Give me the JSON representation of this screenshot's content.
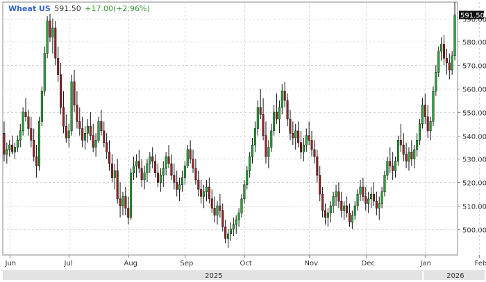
{
  "header": {
    "symbol": "Wheat US",
    "price": "591.50",
    "change": "+17.00(+2.96%)"
  },
  "colors": {
    "up": "#22aa33",
    "down": "#992222",
    "wick": "#111111",
    "grid": "#d6d6d6",
    "symbol": "#3366cc",
    "change": "#339933",
    "last_label_bg": "#111111",
    "last_label_text": "#ffffff",
    "year_band": "#e3e3e3"
  },
  "chart_data": {
    "type": "candlestick",
    "title": "Wheat US",
    "y_axis_side": "right",
    "ylim": [
      489,
      597
    ],
    "yticks": [
      500,
      510,
      520,
      530,
      540,
      550,
      560,
      570,
      580,
      590
    ],
    "grid": true,
    "last_price": 591.5,
    "last_label": "591.50",
    "x_ticks": [
      {
        "label": "Jun",
        "index": 2
      },
      {
        "label": "Jul",
        "index": 24
      },
      {
        "label": "Aug",
        "index": 46
      },
      {
        "label": "Sep",
        "index": 67
      },
      {
        "label": "Oct",
        "index": 89
      },
      {
        "label": "Nov",
        "index": 113
      },
      {
        "label": "Dec",
        "index": 134
      },
      {
        "label": "Jan",
        "index": 156
      },
      {
        "label": "Feb",
        "index": 176
      }
    ],
    "years": [
      {
        "label": "2025",
        "from": 0,
        "to": 156
      },
      {
        "label": "2026",
        "from": 156,
        "to": 196
      }
    ],
    "ohlc": [
      [
        541,
        546,
        529,
        532
      ],
      [
        532,
        537,
        528,
        534
      ],
      [
        534,
        538,
        531,
        536
      ],
      [
        536,
        540,
        532,
        533
      ],
      [
        533,
        537,
        530,
        535
      ],
      [
        535,
        540,
        533,
        538
      ],
      [
        538,
        545,
        535,
        542
      ],
      [
        542,
        552,
        540,
        550
      ],
      [
        550,
        556,
        546,
        548
      ],
      [
        548,
        551,
        540,
        543
      ],
      [
        543,
        548,
        535,
        538
      ],
      [
        538,
        543,
        529,
        531
      ],
      [
        531,
        536,
        522,
        527
      ],
      [
        527,
        548,
        525,
        546
      ],
      [
        546,
        561,
        544,
        559
      ],
      [
        559,
        578,
        557,
        575
      ],
      [
        575,
        591,
        573,
        589
      ],
      [
        589,
        592,
        580,
        582
      ],
      [
        582,
        590,
        575,
        586
      ],
      [
        586,
        589,
        570,
        573
      ],
      [
        573,
        578,
        563,
        566
      ],
      [
        566,
        571,
        549,
        552
      ],
      [
        552,
        559,
        541,
        544
      ],
      [
        544,
        549,
        537,
        539
      ],
      [
        539,
        545,
        535,
        542
      ],
      [
        542,
        566,
        540,
        563
      ],
      [
        563,
        568,
        550,
        553
      ],
      [
        553,
        559,
        543,
        546
      ],
      [
        546,
        552,
        540,
        543
      ],
      [
        543,
        548,
        535,
        538
      ],
      [
        538,
        544,
        534,
        541
      ],
      [
        541,
        547,
        537,
        544
      ],
      [
        544,
        550,
        538,
        540
      ],
      [
        540,
        545,
        533,
        535
      ],
      [
        535,
        541,
        531,
        538
      ],
      [
        538,
        548,
        537,
        546
      ],
      [
        546,
        551,
        540,
        542
      ],
      [
        542,
        546,
        535,
        537
      ],
      [
        537,
        541,
        530,
        533
      ],
      [
        533,
        538,
        525,
        528
      ],
      [
        528,
        532,
        520,
        522
      ],
      [
        522,
        528,
        517,
        525
      ],
      [
        525,
        530,
        511,
        513
      ],
      [
        513,
        520,
        505,
        510
      ],
      [
        510,
        516,
        506,
        514
      ],
      [
        514,
        518,
        506,
        509
      ],
      [
        509,
        514,
        502,
        505
      ],
      [
        505,
        526,
        504,
        524
      ],
      [
        524,
        531,
        521,
        527
      ],
      [
        527,
        532,
        522,
        529
      ],
      [
        529,
        534,
        524,
        526
      ],
      [
        526,
        530,
        518,
        521
      ],
      [
        521,
        527,
        517,
        524
      ],
      [
        524,
        530,
        520,
        528
      ],
      [
        528,
        533,
        524,
        531
      ],
      [
        531,
        535,
        526,
        529
      ],
      [
        529,
        532,
        522,
        524
      ],
      [
        524,
        528,
        518,
        520
      ],
      [
        520,
        526,
        516,
        523
      ],
      [
        523,
        529,
        518,
        526
      ],
      [
        526,
        533,
        523,
        531
      ],
      [
        531,
        536,
        526,
        528
      ],
      [
        528,
        532,
        521,
        523
      ],
      [
        523,
        528,
        517,
        520
      ],
      [
        520,
        525,
        514,
        517
      ],
      [
        517,
        522,
        512,
        519
      ],
      [
        519,
        525,
        516,
        522
      ],
      [
        522,
        529,
        519,
        527
      ],
      [
        527,
        536,
        526,
        534
      ],
      [
        534,
        538,
        528,
        530
      ],
      [
        530,
        534,
        524,
        526
      ],
      [
        526,
        530,
        519,
        521
      ],
      [
        521,
        525,
        514,
        517
      ],
      [
        517,
        521,
        511,
        514
      ],
      [
        514,
        519,
        509,
        516
      ],
      [
        516,
        521,
        512,
        518
      ],
      [
        518,
        522,
        511,
        513
      ],
      [
        513,
        517,
        507,
        509
      ],
      [
        509,
        514,
        503,
        506
      ],
      [
        506,
        512,
        502,
        510
      ],
      [
        510,
        515,
        505,
        508
      ],
      [
        508,
        511,
        499,
        501
      ],
      [
        501,
        504,
        494,
        496
      ],
      [
        496,
        500,
        492,
        498
      ],
      [
        498,
        503,
        495,
        500
      ],
      [
        500,
        505,
        497,
        502
      ],
      [
        502,
        506,
        498,
        504
      ],
      [
        504,
        509,
        501,
        507
      ],
      [
        507,
        515,
        505,
        513
      ],
      [
        513,
        521,
        511,
        519
      ],
      [
        519,
        527,
        517,
        525
      ],
      [
        525,
        533,
        522,
        531
      ],
      [
        531,
        539,
        528,
        536
      ],
      [
        536,
        546,
        533,
        543
      ],
      [
        543,
        555,
        540,
        552
      ],
      [
        552,
        560,
        547,
        549
      ],
      [
        549,
        556,
        538,
        540
      ],
      [
        540,
        546,
        528,
        531
      ],
      [
        531,
        538,
        526,
        535
      ],
      [
        535,
        545,
        533,
        542
      ],
      [
        542,
        553,
        540,
        550
      ],
      [
        550,
        558,
        545,
        547
      ],
      [
        547,
        555,
        541,
        552
      ],
      [
        552,
        562,
        549,
        559
      ],
      [
        559,
        563,
        552,
        555
      ],
      [
        555,
        558,
        544,
        547
      ],
      [
        547,
        551,
        538,
        541
      ],
      [
        541,
        546,
        536,
        539
      ],
      [
        539,
        545,
        534,
        542
      ],
      [
        542,
        546,
        535,
        537
      ],
      [
        537,
        542,
        530,
        533
      ],
      [
        533,
        539,
        529,
        536
      ],
      [
        536,
        543,
        533,
        540
      ],
      [
        540,
        546,
        536,
        538
      ],
      [
        538,
        542,
        531,
        534
      ],
      [
        534,
        538,
        528,
        531
      ],
      [
        531,
        534,
        520,
        523
      ],
      [
        523,
        527,
        512,
        515
      ],
      [
        515,
        518,
        505,
        508
      ],
      [
        508,
        511,
        502,
        505
      ],
      [
        505,
        509,
        501,
        507
      ],
      [
        507,
        512,
        503,
        510
      ],
      [
        510,
        516,
        507,
        514
      ],
      [
        514,
        519,
        510,
        516
      ],
      [
        516,
        520,
        509,
        512
      ],
      [
        512,
        516,
        505,
        508
      ],
      [
        508,
        512,
        504,
        510
      ],
      [
        510,
        514,
        505,
        507
      ],
      [
        507,
        511,
        501,
        503
      ],
      [
        503,
        508,
        500,
        506
      ],
      [
        506,
        512,
        504,
        510
      ],
      [
        510,
        517,
        508,
        515
      ],
      [
        515,
        521,
        512,
        518
      ],
      [
        518,
        522,
        512,
        514
      ],
      [
        514,
        518,
        508,
        511
      ],
      [
        511,
        516,
        507,
        513
      ],
      [
        513,
        518,
        509,
        515
      ],
      [
        515,
        520,
        510,
        512
      ],
      [
        512,
        516,
        506,
        509
      ],
      [
        509,
        514,
        504,
        511
      ],
      [
        511,
        518,
        509,
        516
      ],
      [
        516,
        525,
        514,
        523
      ],
      [
        523,
        531,
        521,
        529
      ],
      [
        529,
        535,
        524,
        527
      ],
      [
        527,
        533,
        521,
        525
      ],
      [
        525,
        531,
        522,
        529
      ],
      [
        529,
        540,
        527,
        538
      ],
      [
        538,
        545,
        533,
        536
      ],
      [
        536,
        541,
        529,
        532
      ],
      [
        532,
        537,
        526,
        529
      ],
      [
        529,
        535,
        525,
        533
      ],
      [
        533,
        538,
        527,
        530
      ],
      [
        530,
        536,
        526,
        534
      ],
      [
        534,
        541,
        531,
        538
      ],
      [
        538,
        547,
        536,
        545
      ],
      [
        545,
        556,
        543,
        553
      ],
      [
        553,
        558,
        545,
        548
      ],
      [
        548,
        553,
        539,
        542
      ],
      [
        542,
        548,
        538,
        546
      ],
      [
        546,
        561,
        544,
        559
      ],
      [
        559,
        570,
        557,
        567
      ],
      [
        567,
        578,
        565,
        576
      ],
      [
        576,
        582,
        572,
        579
      ],
      [
        579,
        583,
        570,
        573
      ],
      [
        573,
        577,
        566,
        571
      ],
      [
        571,
        575,
        564,
        568
      ],
      [
        568,
        576,
        566,
        574
      ],
      [
        574,
        597,
        572,
        591.5
      ]
    ]
  }
}
